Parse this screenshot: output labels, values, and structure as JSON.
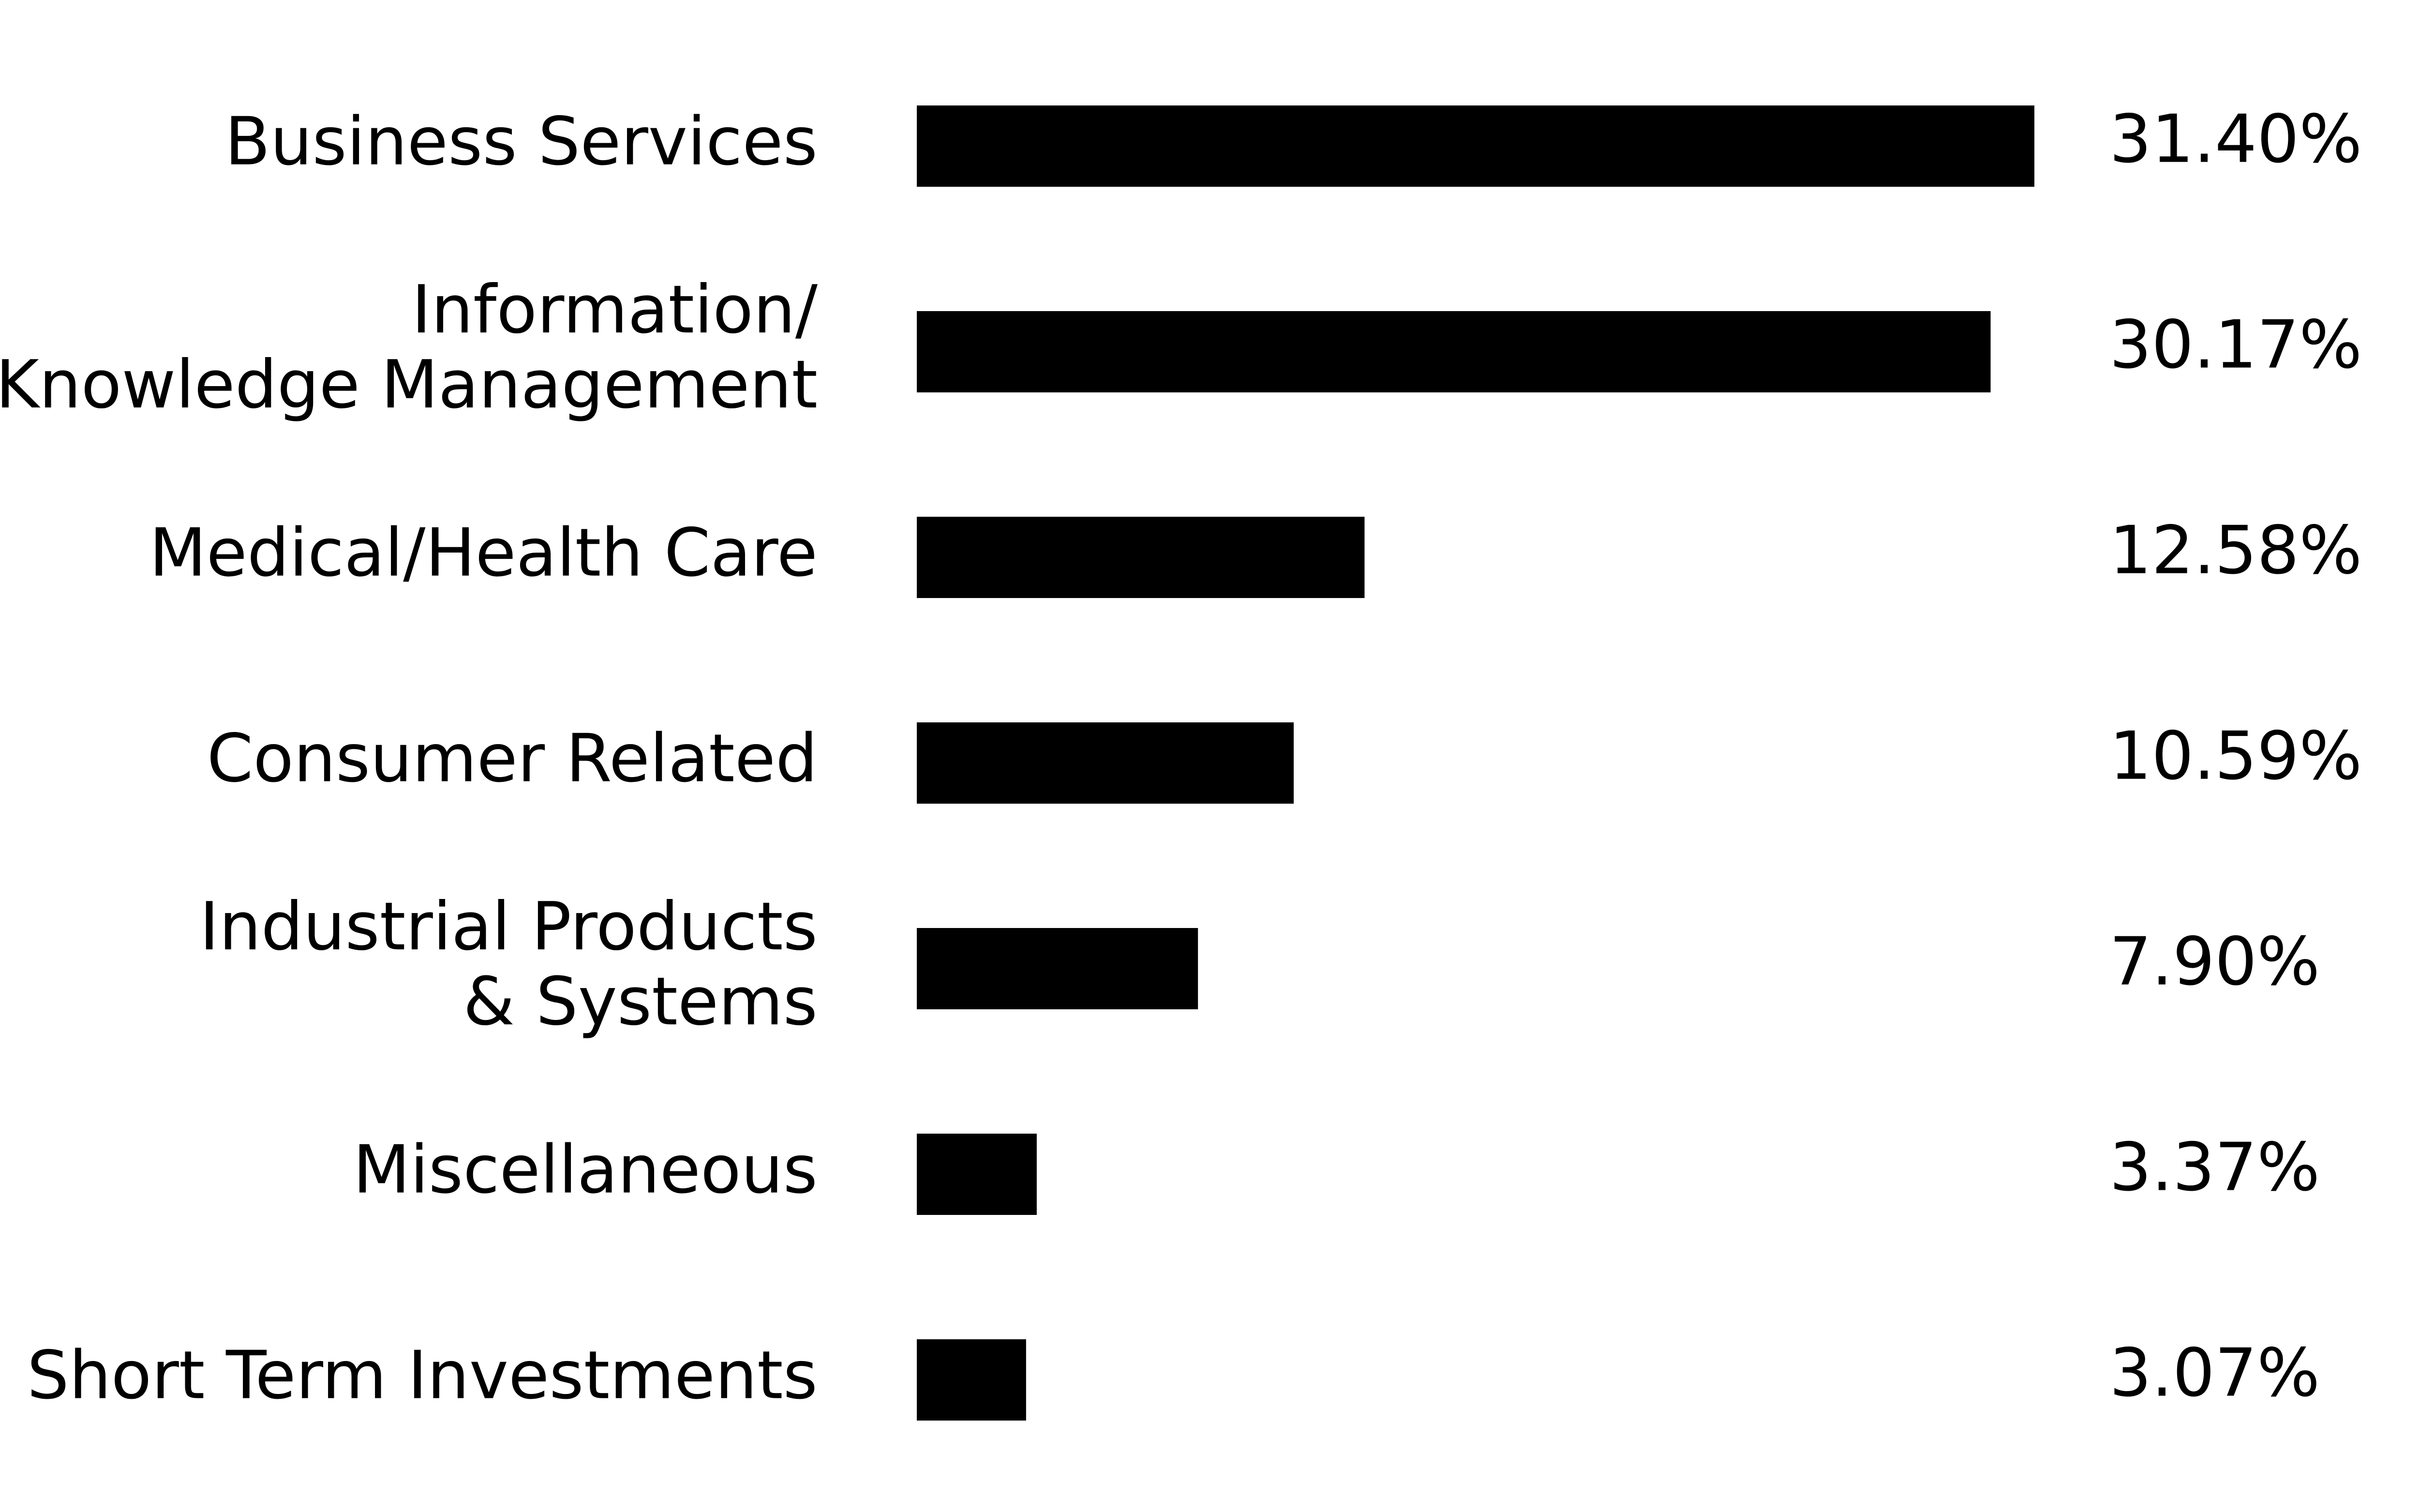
{
  "chart_data": {
    "type": "bar",
    "orientation": "horizontal",
    "categories": [
      [
        "Business Services"
      ],
      [
        "Information/",
        "Knowledge Management"
      ],
      [
        "Medical/Health Care"
      ],
      [
        "Consumer Related"
      ],
      [
        "Industrial Products",
        "& Systems"
      ],
      [
        "Miscellaneous"
      ],
      [
        "Short Term Investments"
      ]
    ],
    "values": [
      31.4,
      30.17,
      12.58,
      10.59,
      7.9,
      3.37,
      3.07
    ],
    "value_labels": [
      "31.40%",
      "30.17%",
      "12.58%",
      "10.59%",
      "7.90%",
      "3.37%",
      "3.07%"
    ],
    "bar_color": "#000000",
    "grid": false,
    "legend": "none",
    "xlim": [
      0,
      31.4
    ]
  }
}
